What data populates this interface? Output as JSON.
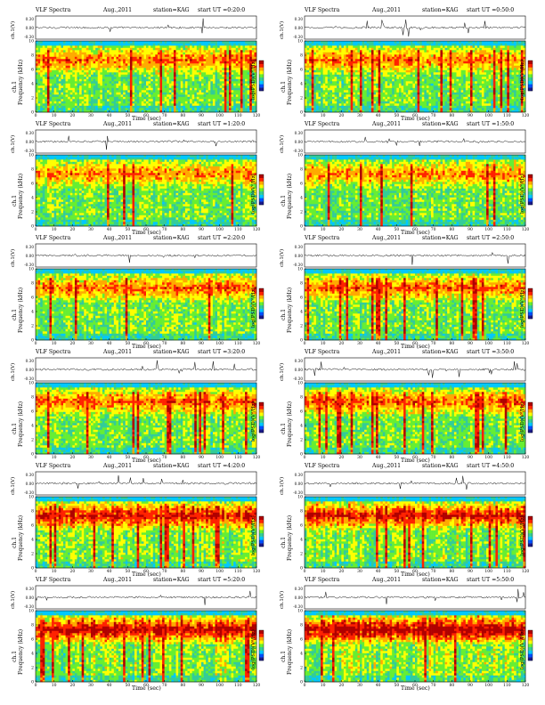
{
  "page_title": "VLF Spectra",
  "month": "Aug.,2011",
  "station": "station=KAG",
  "axis": {
    "trace_ylabel": "ch.1(V)",
    "spec_ylabel_top": "ch.1",
    "spec_ylabel": "Frequency (kHz)",
    "xlabel": "Time (sec)",
    "colorbar_label": "log(PSD)(V²/Hz)"
  },
  "chart_data": [
    {
      "type": "heatmap",
      "title": "VLF Spectra",
      "start": "start UT =0:20:0",
      "xlim": [
        0,
        120
      ],
      "ylim_khz": [
        0,
        10
      ],
      "trace_ylim": [
        -0.3,
        0.3
      ],
      "trace_ticks": [
        "0.30",
        "0.00",
        "-0.30"
      ],
      "x_ticks": [
        0,
        10,
        20,
        30,
        40,
        50,
        60,
        70,
        80,
        90,
        100,
        110,
        120
      ],
      "y_ticks": [
        0,
        2,
        4,
        6,
        8,
        10
      ],
      "intensity": 0.55
    },
    {
      "type": "heatmap",
      "title": "VLF Spectra",
      "start": "start UT =0:50:0",
      "xlim": [
        0,
        120
      ],
      "ylim_khz": [
        0,
        10
      ],
      "trace_ylim": [
        -0.3,
        0.3
      ],
      "trace_ticks": [
        "0.30",
        "0.00",
        "-0.30"
      ],
      "x_ticks": [
        0,
        10,
        20,
        30,
        40,
        50,
        60,
        70,
        80,
        90,
        100,
        110,
        120
      ],
      "y_ticks": [
        0,
        2,
        4,
        6,
        8,
        10
      ],
      "intensity": 0.52
    },
    {
      "type": "heatmap",
      "title": "VLF Spectra",
      "start": "start UT =1:20:0",
      "xlim": [
        0,
        120
      ],
      "ylim_khz": [
        0,
        10
      ],
      "trace_ylim": [
        -0.3,
        0.3
      ],
      "trace_ticks": [
        "0.30",
        "0.00",
        "-0.30"
      ],
      "x_ticks": [
        0,
        10,
        20,
        30,
        40,
        50,
        60,
        70,
        80,
        90,
        100,
        110,
        120
      ],
      "y_ticks": [
        0,
        2,
        4,
        6,
        8,
        10
      ],
      "intensity": 0.5
    },
    {
      "type": "heatmap",
      "title": "VLF Spectra",
      "start": "start UT =1:50:0",
      "xlim": [
        0,
        120
      ],
      "ylim_khz": [
        0,
        10
      ],
      "trace_ylim": [
        -0.3,
        0.3
      ],
      "trace_ticks": [
        "0.30",
        "0.00",
        "-0.30"
      ],
      "x_ticks": [
        0,
        10,
        20,
        30,
        40,
        50,
        60,
        70,
        80,
        90,
        100,
        110,
        120
      ],
      "y_ticks": [
        0,
        2,
        4,
        6,
        8,
        10
      ],
      "intensity": 0.5
    },
    {
      "type": "heatmap",
      "title": "VLF Spectra",
      "start": "start UT =2:20:0",
      "xlim": [
        0,
        120
      ],
      "ylim_khz": [
        0,
        10
      ],
      "trace_ylim": [
        -0.3,
        0.3
      ],
      "trace_ticks": [
        "0.30",
        "0.00",
        "-0.30"
      ],
      "x_ticks": [
        0,
        10,
        20,
        30,
        40,
        50,
        60,
        70,
        80,
        90,
        100,
        110,
        120
      ],
      "y_ticks": [
        0,
        2,
        4,
        6,
        8,
        10
      ],
      "intensity": 0.55
    },
    {
      "type": "heatmap",
      "title": "VLF Spectra",
      "start": "start UT =2:50:0",
      "xlim": [
        0,
        120
      ],
      "ylim_khz": [
        0,
        10
      ],
      "trace_ylim": [
        -0.3,
        0.3
      ],
      "trace_ticks": [
        "0.30",
        "0.00",
        "-0.30"
      ],
      "x_ticks": [
        0,
        10,
        20,
        30,
        40,
        50,
        60,
        70,
        80,
        90,
        100,
        110,
        120
      ],
      "y_ticks": [
        0,
        2,
        4,
        6,
        8,
        10
      ],
      "intensity": 0.55
    },
    {
      "type": "heatmap",
      "title": "VLF Spectra",
      "start": "start UT =3:20:0",
      "xlim": [
        0,
        120
      ],
      "ylim_khz": [
        0,
        10
      ],
      "trace_ylim": [
        -0.3,
        0.3
      ],
      "trace_ticks": [
        "0.30",
        "0.00",
        "-0.30"
      ],
      "x_ticks": [
        0,
        10,
        20,
        30,
        40,
        50,
        60,
        70,
        80,
        90,
        100,
        110,
        120
      ],
      "y_ticks": [
        0,
        2,
        4,
        6,
        8,
        10
      ],
      "intensity": 0.55
    },
    {
      "type": "heatmap",
      "title": "VLF Spectra",
      "start": "start UT =3:50:0",
      "xlim": [
        0,
        120
      ],
      "ylim_khz": [
        0,
        10
      ],
      "trace_ylim": [
        -0.3,
        0.3
      ],
      "trace_ticks": [
        "0.30",
        "0.00",
        "-0.30"
      ],
      "x_ticks": [
        0,
        10,
        20,
        30,
        40,
        50,
        60,
        70,
        80,
        90,
        100,
        110,
        120
      ],
      "y_ticks": [
        0,
        2,
        4,
        6,
        8,
        10
      ],
      "intensity": 0.6
    },
    {
      "type": "heatmap",
      "title": "VLF Spectra",
      "start": "start UT =4:20:0",
      "xlim": [
        0,
        120
      ],
      "ylim_khz": [
        0,
        10
      ],
      "trace_ylim": [
        -0.3,
        0.3
      ],
      "trace_ticks": [
        "0.30",
        "0.00",
        "-0.30"
      ],
      "x_ticks": [
        0,
        10,
        20,
        30,
        40,
        50,
        60,
        70,
        80,
        90,
        100,
        110,
        120
      ],
      "y_ticks": [
        0,
        2,
        4,
        6,
        8,
        10
      ],
      "intensity": 0.72
    },
    {
      "type": "heatmap",
      "title": "VLF Spectra",
      "start": "start UT =4:50:0",
      "xlim": [
        0,
        120
      ],
      "ylim_khz": [
        0,
        10
      ],
      "trace_ylim": [
        -0.3,
        0.3
      ],
      "trace_ticks": [
        "0.30",
        "0.00",
        "-0.30"
      ],
      "x_ticks": [
        0,
        10,
        20,
        30,
        40,
        50,
        60,
        70,
        80,
        90,
        100,
        110,
        120
      ],
      "y_ticks": [
        0,
        2,
        4,
        6,
        8,
        10
      ],
      "intensity": 0.72
    },
    {
      "type": "heatmap",
      "title": "VLF Spectra",
      "start": "start UT =5:20:0",
      "xlim": [
        0,
        120
      ],
      "ylim_khz": [
        0,
        10
      ],
      "trace_ylim": [
        -0.3,
        0.3
      ],
      "trace_ticks": [
        "0.30",
        "0.00",
        "-0.30"
      ],
      "x_ticks": [
        0,
        10,
        20,
        30,
        40,
        50,
        60,
        70,
        80,
        90,
        100,
        110,
        120
      ],
      "y_ticks": [
        0,
        2,
        4,
        6,
        8,
        10
      ],
      "intensity": 0.82
    },
    {
      "type": "heatmap",
      "title": "VLF Spectra",
      "start": "start UT =5:50:0",
      "xlim": [
        0,
        120
      ],
      "ylim_khz": [
        0,
        10
      ],
      "trace_ylim": [
        -0.3,
        0.3
      ],
      "trace_ticks": [
        "0.30",
        "0.00",
        "-0.30"
      ],
      "x_ticks": [
        0,
        10,
        20,
        30,
        40,
        50,
        60,
        70,
        80,
        90,
        100,
        110,
        120
      ],
      "y_ticks": [
        0,
        2,
        4,
        6,
        8,
        10
      ],
      "intensity": 0.85
    }
  ],
  "colors": {
    "colormap": [
      "#1a1a8c",
      "#0050ff",
      "#00c8ff",
      "#33cc99",
      "#66ee33",
      "#ffff00",
      "#ffaa00",
      "#ff2200",
      "#b00000"
    ]
  }
}
